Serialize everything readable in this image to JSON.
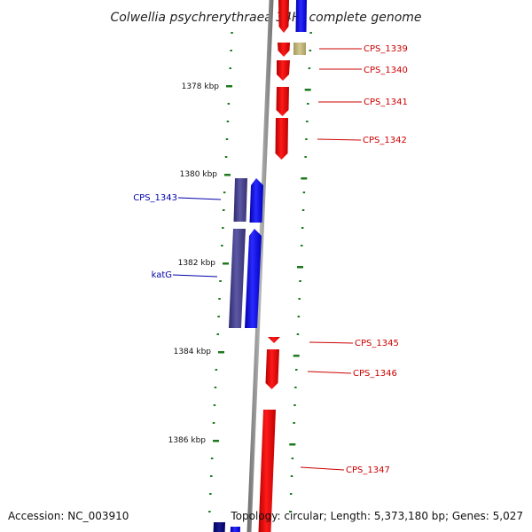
{
  "title": "Colwellia psychrerythraea 34H, complete genome",
  "footer": {
    "accession": "Accession: NC_003910",
    "summary": "Topology: circular; Length: 5,373,180 bp; Genes: 5,027"
  },
  "colors": {
    "forward_gene": "#ee0000",
    "reverse_gene": "#0000ee",
    "rna_gene": "#4b4790",
    "other_feature": "#bdb27a",
    "tick": "#1e7a1e",
    "backbone": "#8a8a8a",
    "label_reverse": "#0000aa",
    "label_forward": "#cc0000"
  },
  "ticks": {
    "major": [
      "1378 kbp",
      "1380 kbp",
      "1382 kbp",
      "1384 kbp",
      "1386 kbp"
    ]
  },
  "gene_labels": {
    "reverse": [
      "CPS_1343",
      "katG"
    ],
    "forward": [
      "CPS_1339",
      "CPS_1340",
      "CPS_1341",
      "CPS_1342",
      "CPS_1345",
      "CPS_1346",
      "CPS_1347"
    ]
  }
}
